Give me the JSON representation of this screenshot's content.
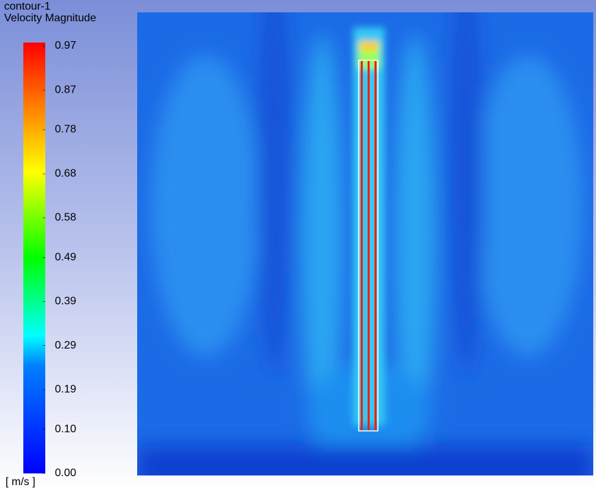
{
  "chart_data": {
    "type": "contour",
    "title": "contour-1",
    "subtitle": "Velocity Magnitude",
    "unit_label": "[ m/s ]",
    "clim": [
      0,
      0.97
    ],
    "cticks": [
      {
        "value": 0,
        "label": "0.00"
      },
      {
        "value": 0.1,
        "label": "0.10"
      },
      0.19,
      0.29,
      0.39,
      0.49,
      0.58,
      0.68,
      0.78,
      0.87,
      0.97
    ]
  }
}
